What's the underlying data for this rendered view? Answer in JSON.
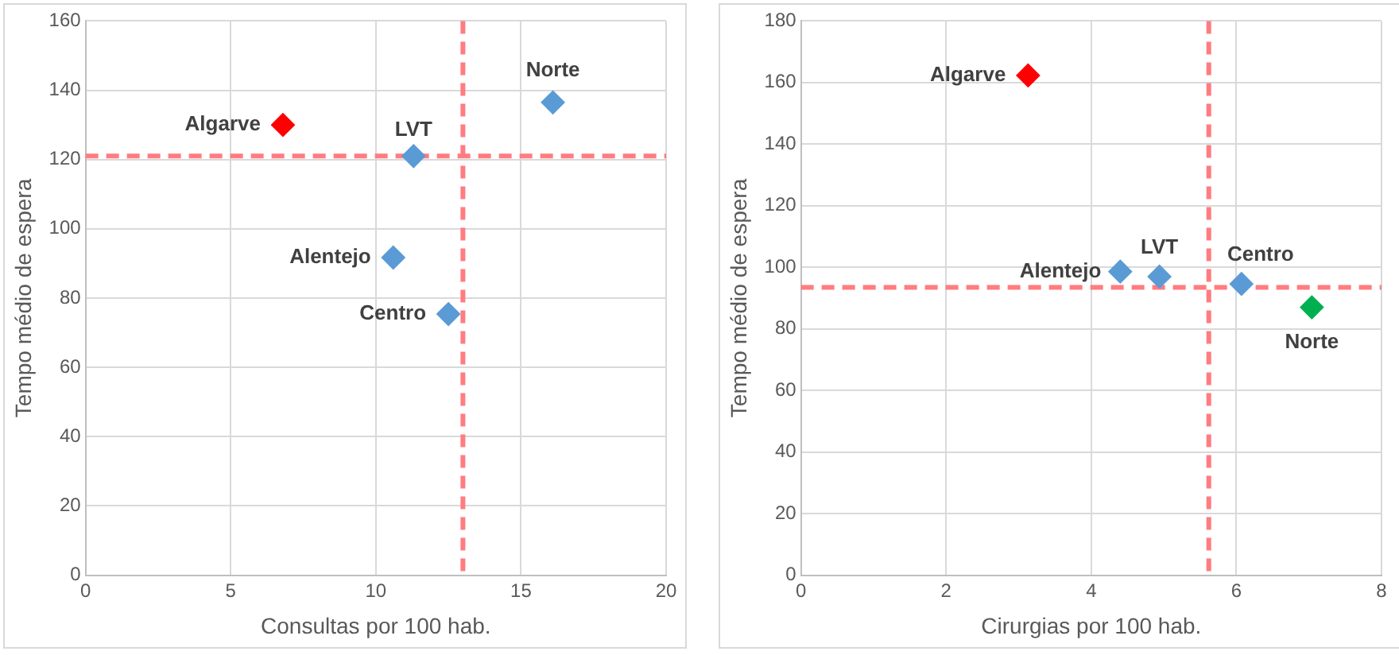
{
  "chart_data": [
    {
      "type": "scatter",
      "xlabel": "Consultas por 100 hab.",
      "ylabel": "Tempo médio de espera",
      "x": [
        6.8,
        11.3,
        16.1,
        10.6,
        12.5
      ],
      "values": [
        130,
        121,
        136.5,
        91.7,
        75.4
      ],
      "colors": [
        "#ff0000",
        "#5b9bd5",
        "#5b9bd5",
        "#5b9bd5",
        "#5b9bd5"
      ],
      "marker": "diamond",
      "xlim": [
        0,
        20
      ],
      "xticks": [
        0,
        5,
        10,
        15,
        20
      ],
      "ylim": [
        0,
        160
      ],
      "yticks": [
        0,
        20,
        40,
        60,
        80,
        100,
        120,
        140,
        160
      ],
      "grid": true,
      "ref_lines": [
        {
          "axis": "x",
          "value": 13,
          "color": "#ff7c80",
          "line_style": "dashed"
        },
        {
          "axis": "y",
          "value": 121,
          "color": "#ff7c80",
          "line_style": "dashed"
        }
      ],
      "annotations": [
        {
          "text": "Algarve",
          "x": 6.8,
          "y": 130
        },
        {
          "text": "LVT",
          "x": 11.3,
          "y": 121
        },
        {
          "text": "Norte",
          "x": 16.1,
          "y": 136.5
        },
        {
          "text": "Alentejo",
          "x": 10.6,
          "y": 91.7
        },
        {
          "text": "Centro",
          "x": 12.5,
          "y": 75.4
        }
      ]
    },
    {
      "type": "scatter",
      "xlabel": "Cirurgias por 100 hab.",
      "ylabel": "Tempo médio de espera",
      "x": [
        3.13,
        4.4,
        4.94,
        6.07,
        7.04
      ],
      "values": [
        162.3,
        98.6,
        97,
        94.6,
        87
      ],
      "colors": [
        "#ff0000",
        "#5b9bd5",
        "#5b9bd5",
        "#5b9bd5",
        "#00b050"
      ],
      "marker": "diamond",
      "xlim": [
        0,
        8
      ],
      "xticks": [
        0,
        2,
        4,
        6,
        8
      ],
      "ylim": [
        0,
        180
      ],
      "yticks": [
        0,
        20,
        40,
        60,
        80,
        100,
        120,
        140,
        160,
        180
      ],
      "grid": true,
      "ref_lines": [
        {
          "axis": "x",
          "value": 5.62,
          "color": "#ff7c80",
          "line_style": "dashed"
        },
        {
          "axis": "y",
          "value": 93.5,
          "color": "#ff7c80",
          "line_style": "dashed"
        }
      ],
      "annotations": [
        {
          "text": "Algarve",
          "x": 3.13,
          "y": 162.3
        },
        {
          "text": "Alentejo",
          "x": 4.4,
          "y": 98.6
        },
        {
          "text": "LVT",
          "x": 4.94,
          "y": 97
        },
        {
          "text": "Centro",
          "x": 6.07,
          "y": 94.6
        },
        {
          "text": "Norte",
          "x": 7.04,
          "y": 87
        }
      ]
    }
  ]
}
